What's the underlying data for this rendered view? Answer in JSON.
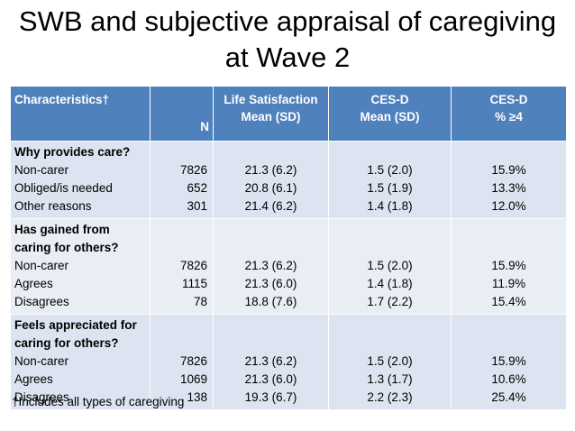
{
  "title_line1": "SWB and subjective appraisal of caregiving",
  "title_line2": "at Wave 2",
  "headers": {
    "characteristics": "Characteristics†",
    "n": "N",
    "ls_line1": "Life Satisfaction",
    "ls_line2": "Mean (SD)",
    "cesd_line1": "CES-D",
    "cesd_line2": "Mean (SD)",
    "cesd4_line1": "CES-D",
    "cesd4_line2": "% ≥4"
  },
  "sections": [
    {
      "heading": [
        "Why provides care?"
      ],
      "rows": [
        {
          "label": "Non-carer",
          "n": "7826",
          "ls": "21.3 (6.2)",
          "cesd": "1.5 (2.0)",
          "pct": "15.9%"
        },
        {
          "label": "Obliged/is needed",
          "n": "652",
          "ls": "20.8 (6.1)",
          "cesd": "1.5 (1.9)",
          "pct": "13.3%"
        },
        {
          "label": "Other reasons",
          "n": "301",
          "ls": "21.4 (6.2)",
          "cesd": "1.4 (1.8)",
          "pct": "12.0%"
        }
      ]
    },
    {
      "heading": [
        "Has gained from",
        "caring for others?"
      ],
      "rows": [
        {
          "label": "Non-carer",
          "n": "7826",
          "ls": "21.3 (6.2)",
          "cesd": "1.5 (2.0)",
          "pct": "15.9%"
        },
        {
          "label": "Agrees",
          "n": "1115",
          "ls": "21.3 (6.0)",
          "cesd": "1.4 (1.8)",
          "pct": "11.9%"
        },
        {
          "label": "Disagrees",
          "n": "78",
          "ls": "18.8 (7.6)",
          "cesd": "1.7 (2.2)",
          "pct": "15.4%"
        }
      ]
    },
    {
      "heading": [
        "Feels appreciated for",
        "caring for others?"
      ],
      "rows": [
        {
          "label": "Non-carer",
          "n": "7826",
          "ls": "21.3 (6.2)",
          "cesd": "1.5 (2.0)",
          "pct": "15.9%"
        },
        {
          "label": "Agrees",
          "n": "1069",
          "ls": "21.3 (6.0)",
          "cesd": "1.3 (1.7)",
          "pct": "10.6%"
        },
        {
          "label": "Disagrees",
          "n": "138",
          "ls": "19.3 (6.7)",
          "cesd": "2.2 (2.3)",
          "pct": "25.4%"
        }
      ]
    }
  ],
  "footnote": "†Includes all types of caregiving",
  "colors": {
    "header_bg": "#4f81bd",
    "row_bg": "#dbe4f0",
    "row_alt_bg": "#e9edf4"
  }
}
